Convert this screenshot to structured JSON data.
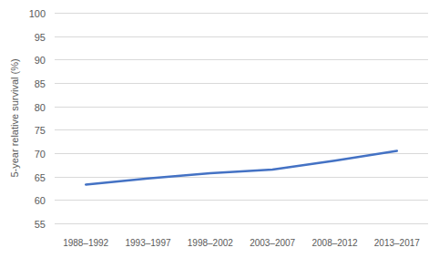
{
  "chart_data": {
    "type": "line",
    "y_label": "5-year relative survival (%)",
    "categories": [
      "1988–1992",
      "1993–1997",
      "1998–2002",
      "2003–2007",
      "2008–2012",
      "2013–2017"
    ],
    "values": [
      63.3,
      64.6,
      65.7,
      66.5,
      68.4,
      70.5
    ],
    "color": "#4472c4",
    "ylim": [
      55,
      100
    ],
    "yticks": [
      55,
      60,
      65,
      70,
      75,
      80,
      85,
      90,
      95,
      100
    ],
    "grid": true
  }
}
